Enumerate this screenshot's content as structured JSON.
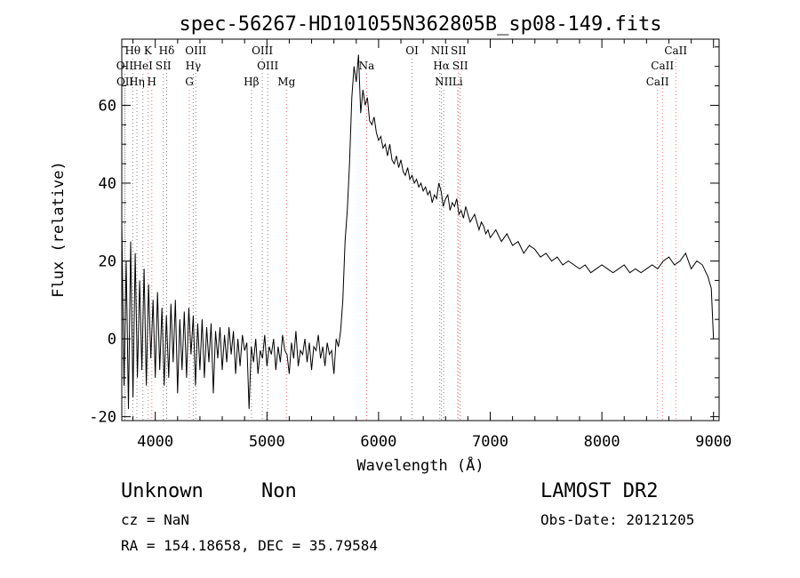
{
  "chart_data": {
    "type": "line",
    "title": "spec-56267-HD101055N362805B_sp08-149.fits",
    "xlabel": "Wavelength (Å)",
    "ylabel": "Flux (relative)",
    "xlim": [
      3700,
      9050
    ],
    "ylim": [
      -21,
      77
    ],
    "xticks": [
      4000,
      5000,
      6000,
      7000,
      8000,
      9000
    ],
    "yticks": [
      -20,
      0,
      20,
      40,
      60
    ],
    "grid": false,
    "series": [
      {
        "x": [
          3700,
          3720,
          3740,
          3760,
          3780,
          3800,
          3820,
          3840,
          3860,
          3880,
          3900,
          3920,
          3940,
          3960,
          3980,
          4000,
          4020,
          4040,
          4060,
          4080,
          4100,
          4120,
          4140,
          4160,
          4180,
          4200,
          4220,
          4240,
          4260,
          4280,
          4300,
          4320,
          4340,
          4360,
          4380,
          4400,
          4420,
          4440,
          4460,
          4480,
          4500,
          4520,
          4540,
          4560,
          4580,
          4600,
          4620,
          4640,
          4660,
          4680,
          4700,
          4720,
          4740,
          4760,
          4780,
          4800,
          4820,
          4840,
          4860,
          4880,
          4900,
          4920,
          4940,
          4960,
          4980,
          5000,
          5020,
          5040,
          5060,
          5080,
          5100,
          5120,
          5140,
          5160,
          5180,
          5200,
          5220,
          5240,
          5260,
          5280,
          5300,
          5320,
          5340,
          5360,
          5380,
          5400,
          5420,
          5440,
          5460,
          5480,
          5500,
          5520,
          5540,
          5560,
          5580,
          5600,
          5620,
          5640,
          5660,
          5680,
          5700,
          5720,
          5740,
          5760,
          5780,
          5800,
          5820,
          5840,
          5860,
          5880,
          5900,
          5920,
          5940,
          5960,
          5980,
          6000,
          6020,
          6040,
          6060,
          6080,
          6100,
          6120,
          6140,
          6160,
          6180,
          6200,
          6220,
          6240,
          6260,
          6280,
          6300,
          6320,
          6340,
          6360,
          6380,
          6400,
          6420,
          6440,
          6460,
          6480,
          6500,
          6520,
          6540,
          6560,
          6580,
          6600,
          6620,
          6640,
          6660,
          6680,
          6700,
          6720,
          6740,
          6760,
          6780,
          6800,
          6820,
          6840,
          6860,
          6880,
          6900,
          6920,
          6940,
          6960,
          6980,
          7000,
          7050,
          7100,
          7150,
          7200,
          7250,
          7300,
          7350,
          7400,
          7450,
          7500,
          7550,
          7600,
          7650,
          7700,
          7750,
          7800,
          7850,
          7900,
          7950,
          8000,
          8050,
          8100,
          8150,
          8200,
          8250,
          8300,
          8350,
          8400,
          8450,
          8500,
          8550,
          8600,
          8650,
          8700,
          8750,
          8800,
          8850,
          8900,
          8950,
          8980,
          9000
        ],
        "y": [
          30,
          -12,
          20,
          -18,
          25,
          -15,
          22,
          -10,
          15,
          -8,
          18,
          -12,
          14,
          -5,
          10,
          -10,
          12,
          -8,
          8,
          -12,
          6,
          -10,
          9,
          -6,
          10,
          -14,
          5,
          -8,
          7,
          -10,
          8,
          -4,
          6,
          -12,
          4,
          -8,
          5,
          -10,
          3,
          -6,
          4,
          -14,
          2,
          -5,
          3,
          -8,
          1,
          -6,
          3,
          -4,
          2,
          -9,
          0,
          -7,
          1,
          -3,
          -1,
          -18,
          -2,
          -6,
          0,
          -9,
          -3,
          -5,
          1,
          -7,
          -2,
          -4,
          0,
          -8,
          -2,
          -6,
          1,
          -3,
          -4,
          -9,
          -1,
          -5,
          2,
          -7,
          -3,
          -4,
          0,
          -6,
          -1,
          -8,
          -2,
          -3,
          1,
          -5,
          -2,
          -7,
          -1,
          -4,
          -3,
          -9,
          0,
          -2,
          2,
          10,
          25,
          33,
          45,
          62,
          70,
          66,
          73,
          58,
          64,
          60,
          62,
          56,
          55,
          57,
          53,
          51,
          52,
          49,
          50,
          47,
          50,
          46,
          45,
          47,
          44,
          46,
          43,
          42,
          44,
          41,
          42,
          40,
          41,
          39,
          40,
          38,
          39,
          37,
          38,
          35,
          37,
          36,
          40,
          38,
          34,
          36,
          37,
          33,
          35,
          34,
          36,
          32,
          33,
          31,
          34,
          32,
          30,
          31,
          32,
          30,
          28,
          30,
          29,
          27,
          28,
          26,
          28,
          25,
          27,
          24,
          25,
          22,
          24,
          23,
          21,
          22,
          20,
          21,
          19,
          20,
          19,
          18,
          19,
          17,
          18,
          19,
          18,
          17,
          18,
          19,
          17,
          18,
          17,
          18,
          19,
          18,
          20,
          21,
          19,
          20,
          22,
          18,
          20,
          19,
          16,
          13,
          0
        ]
      }
    ],
    "lines": [
      {
        "label": "Hθ",
        "x": 3798,
        "row": 0,
        "color": "#808080"
      },
      {
        "label": "K",
        "x": 3934,
        "row": 0,
        "color": "#ff6666"
      },
      {
        "label": "Hδ",
        "x": 4102,
        "row": 0,
        "color": "#808080"
      },
      {
        "label": "OIII",
        "x": 4363,
        "row": 0,
        "color": "#808080"
      },
      {
        "label": "OIII",
        "x": 4959,
        "row": 0,
        "color": "#808080"
      },
      {
        "label": "OI",
        "x": 6300,
        "row": 0,
        "color": "#808080"
      },
      {
        "label": "NII",
        "x": 6548,
        "row": 0,
        "color": "#808080"
      },
      {
        "label": "SII",
        "x": 6716,
        "row": 0,
        "color": "#ff6666"
      },
      {
        "label": "CaII",
        "x": 8662,
        "row": 0,
        "color": "#ff6666"
      },
      {
        "label": "OII",
        "x": 3727,
        "row": 1,
        "color": "#808080"
      },
      {
        "label": "HeI",
        "x": 3889,
        "row": 1,
        "color": "#808080"
      },
      {
        "label": "SII",
        "x": 4072,
        "row": 1,
        "color": "#808080"
      },
      {
        "label": "Hγ",
        "x": 4340,
        "row": 1,
        "color": "#808080"
      },
      {
        "label": "OIII",
        "x": 5007,
        "row": 1,
        "color": "#808080"
      },
      {
        "label": "Na",
        "x": 5893,
        "row": 1,
        "color": "#ff6666"
      },
      {
        "label": "Hα",
        "x": 6563,
        "row": 1,
        "color": "#808080"
      },
      {
        "label": "SII",
        "x": 6731,
        "row": 1,
        "color": "#808080"
      },
      {
        "label": "CaII",
        "x": 8542,
        "row": 1,
        "color": "#ff6666"
      },
      {
        "label": "OII",
        "x": 3729,
        "row": 2,
        "color": "#808080"
      },
      {
        "label": "Hη",
        "x": 3835,
        "row": 2,
        "color": "#808080"
      },
      {
        "label": "H",
        "x": 3969,
        "row": 2,
        "color": "#ff6666"
      },
      {
        "label": "G",
        "x": 4305,
        "row": 2,
        "color": "#ff6666"
      },
      {
        "label": "Hβ",
        "x": 4861,
        "row": 2,
        "color": "#808080"
      },
      {
        "label": "Mg",
        "x": 5175,
        "row": 2,
        "color": "#ff6666"
      },
      {
        "label": "NII",
        "x": 6583,
        "row": 2,
        "color": "#808080"
      },
      {
        "label": "Li",
        "x": 6708,
        "row": 2,
        "color": "#ff6666"
      },
      {
        "label": "CaII",
        "x": 8498,
        "row": 2,
        "color": "#ff6666"
      }
    ]
  },
  "info": {
    "class_label": "Unknown",
    "subclass_label": "Non",
    "survey_label": "LAMOST DR2",
    "cz_text": "cz = NaN",
    "obsdate_text": "Obs-Date: 20121205",
    "coords_text": "RA = 154.18658, DEC =  35.79584"
  }
}
